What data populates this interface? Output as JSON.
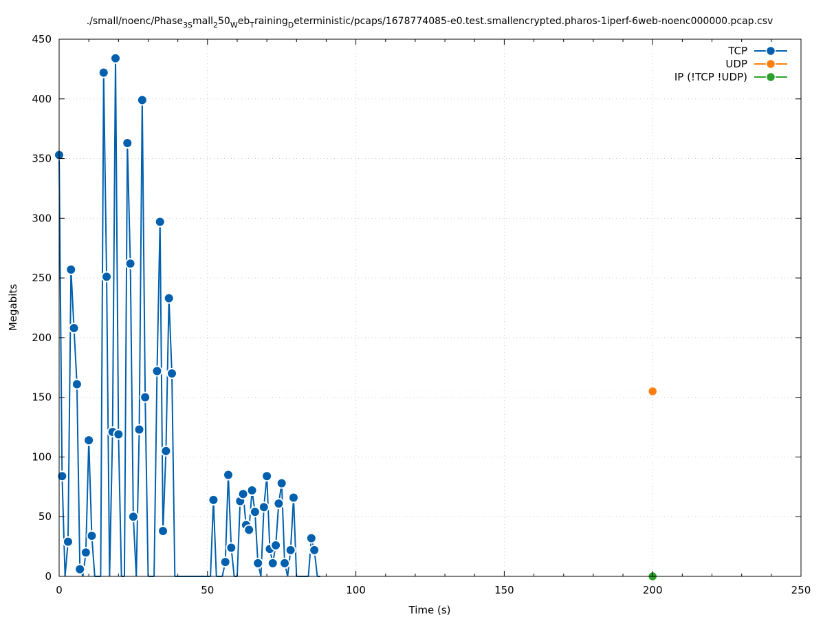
{
  "chart_data": {
    "type": "line",
    "title": "./small/noenc/Phase3Small250WebTrainingDeterministic/pcaps/1678774085-e0.test.smallencrypted.pharos-1iperf-6web-noenc000000.pcap.csv",
    "title_parts": [
      {
        "t": "./small/noenc/Phase",
        "s": "n"
      },
      {
        "t": "3",
        "s": "sub"
      },
      {
        "t": "S",
        "s": "sub"
      },
      {
        "t": "mall",
        "s": "n"
      },
      {
        "t": "2",
        "s": "sub"
      },
      {
        "t": "50",
        "s": "n"
      },
      {
        "t": "W",
        "s": "sub"
      },
      {
        "t": "eb",
        "s": "n"
      },
      {
        "t": "T",
        "s": "sub"
      },
      {
        "t": "raining",
        "s": "n"
      },
      {
        "t": "D",
        "s": "sub"
      },
      {
        "t": "eterministic/pcaps/1678774085-e0.test.smallencrypted.pharos-1iperf-6web-noenc000000.pcap.csv",
        "s": "n"
      }
    ],
    "xlabel": "Time (s)",
    "ylabel": "Megabits",
    "xlim": [
      0,
      250
    ],
    "ylim": [
      0,
      450
    ],
    "xticks": [
      0,
      50,
      100,
      150,
      200,
      250
    ],
    "yticks": [
      0,
      50,
      100,
      150,
      200,
      250,
      300,
      350,
      400,
      450
    ],
    "grid": true,
    "legend_position": "top-right",
    "series": [
      {
        "name": "TCP",
        "color": "#0060ad",
        "style": "linespoints",
        "x": [
          0,
          1,
          2,
          3,
          4,
          5,
          6,
          7,
          8,
          9,
          10,
          11,
          12,
          13,
          14,
          15,
          16,
          17,
          18,
          19,
          20,
          21,
          22,
          23,
          24,
          25,
          26,
          27,
          28,
          29,
          30,
          31,
          32,
          33,
          34,
          35,
          36,
          37,
          38,
          39,
          40,
          41,
          42,
          43,
          44,
          45,
          46,
          47,
          48,
          49,
          50,
          51,
          52,
          53,
          54,
          55,
          56,
          57,
          58,
          59,
          60,
          61,
          62,
          63,
          64,
          65,
          66,
          67,
          68,
          69,
          70,
          71,
          72,
          73,
          74,
          75,
          76,
          77,
          78,
          79,
          80,
          81,
          82,
          83,
          84,
          85,
          86,
          87,
          88
        ],
        "y": [
          353,
          84,
          0,
          29,
          257,
          208,
          161,
          6,
          0,
          20,
          114,
          34,
          0,
          0,
          0,
          422,
          251,
          0,
          121,
          434,
          119,
          0,
          0,
          363,
          262,
          50,
          0,
          123,
          399,
          150,
          0,
          0,
          0,
          172,
          297,
          38,
          105,
          233,
          170,
          0,
          0,
          0,
          0,
          0,
          0,
          0,
          0,
          0,
          0,
          0,
          0,
          0,
          64,
          0,
          0,
          0,
          12,
          85,
          24,
          0,
          0,
          63,
          69,
          43,
          39,
          72,
          54,
          11,
          0,
          58,
          84,
          23,
          11,
          26,
          61,
          78,
          11,
          0,
          22,
          66,
          0,
          0,
          0,
          0,
          0,
          32,
          22,
          0,
          0
        ]
      },
      {
        "name": "UDP",
        "color": "#ff7f0e",
        "style": "linespoints",
        "x_start": 0,
        "x_end": 200,
        "x_step": 1,
        "y_value": 155,
        "marker_x": [
          200
        ]
      },
      {
        "name": "IP (!TCP  !UDP)",
        "color": "#2ca02c",
        "style": "linespoints",
        "x_start": 0,
        "x_end": 200,
        "x_step": 1,
        "y_value": 0,
        "marker_x": [
          200
        ]
      }
    ]
  }
}
